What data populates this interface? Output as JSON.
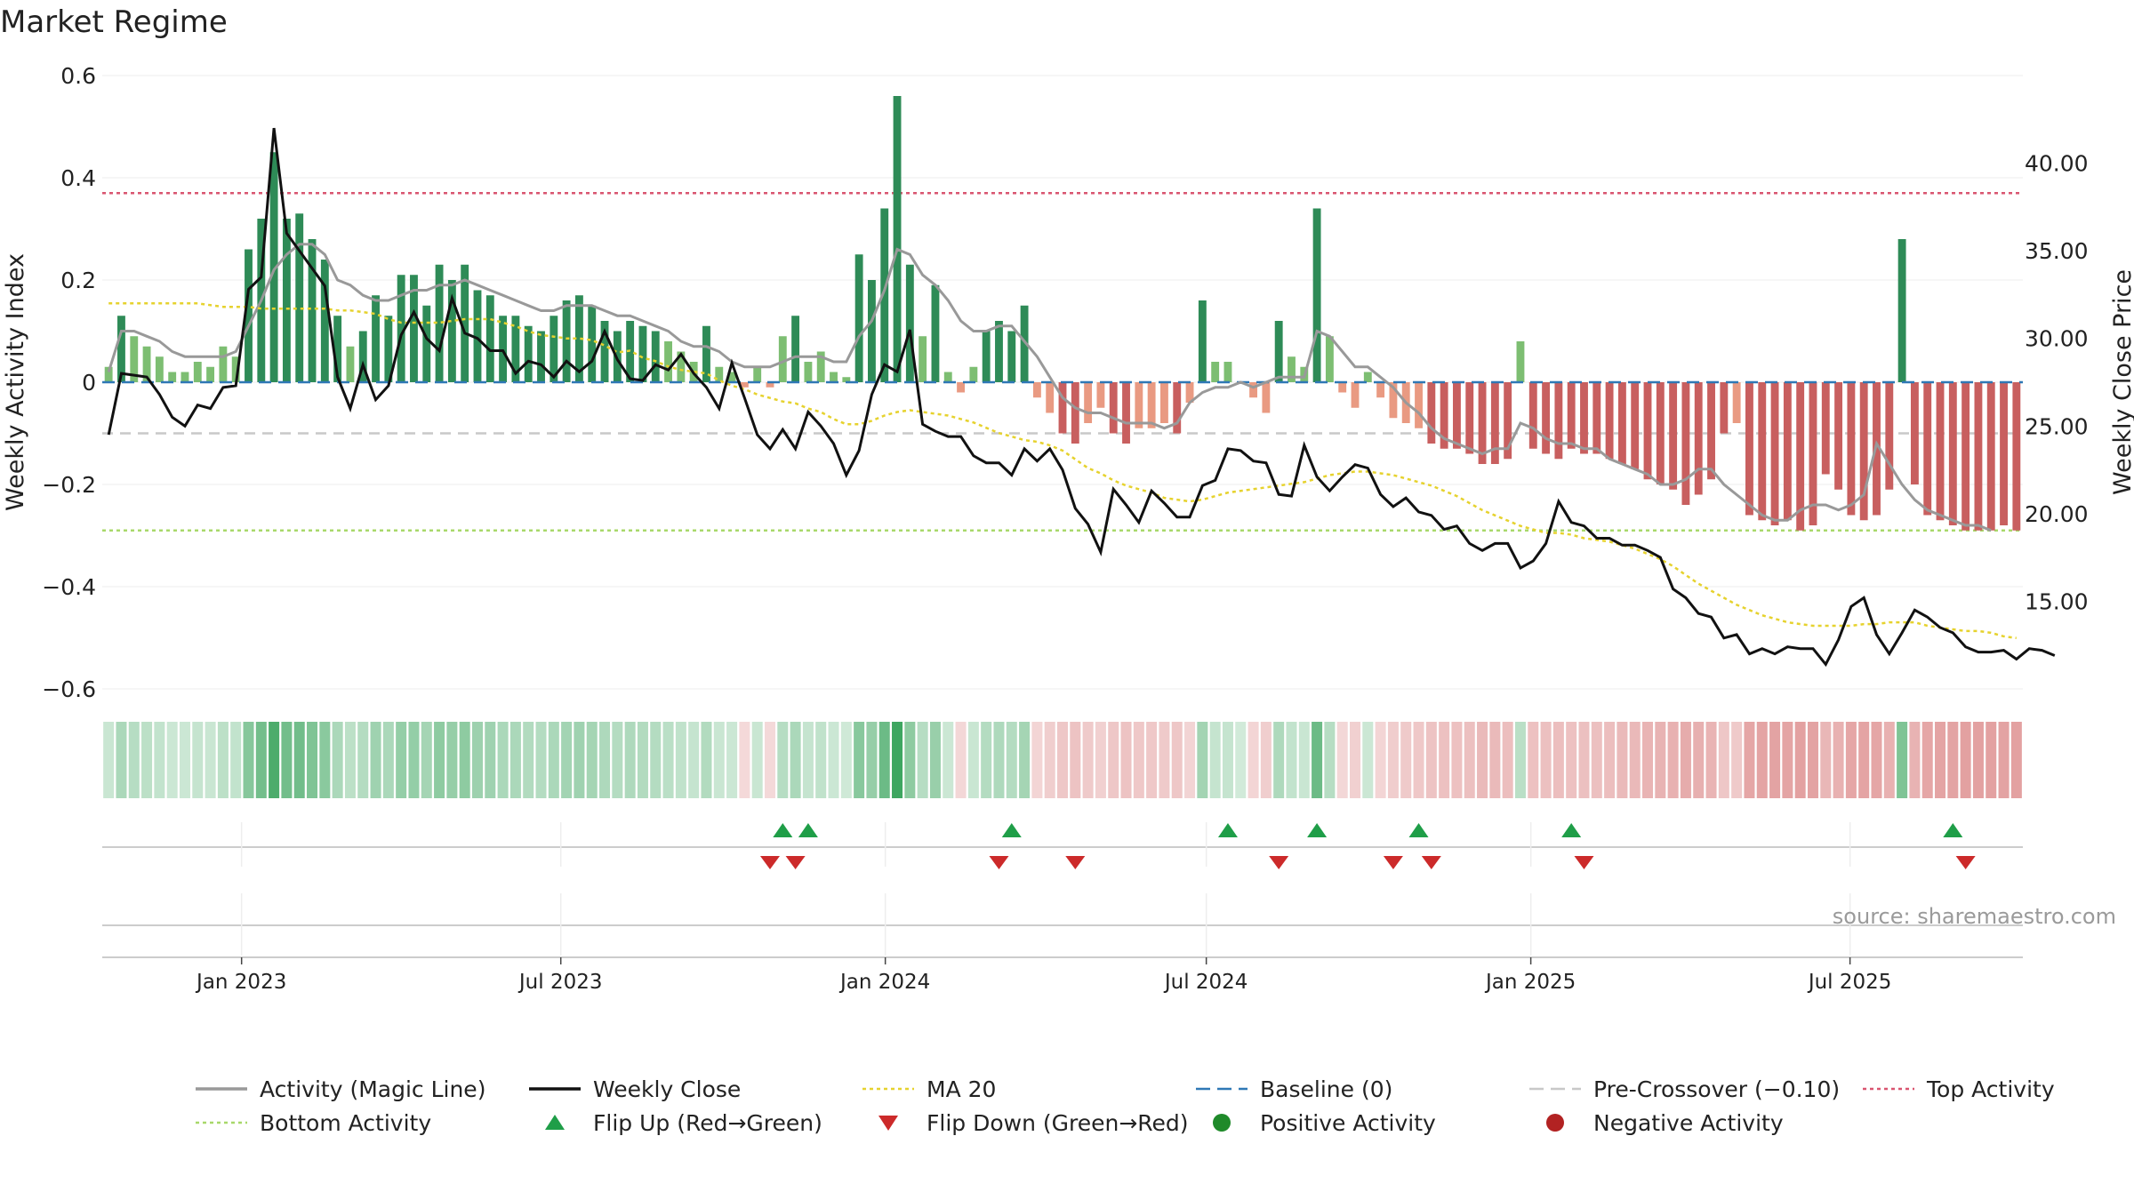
{
  "chart_data": {
    "type": "bar",
    "title": "Market Regime",
    "ylabel": "Weekly Activity Index",
    "y2label": "Weekly Close Price",
    "ylim": [
      -0.6,
      0.6
    ],
    "y2lim": [
      10,
      45
    ],
    "yticks": [
      0.6,
      0.4,
      0.2,
      0,
      -0.2,
      -0.4,
      -0.6
    ],
    "ytick_labels": [
      "0.6",
      "0.4",
      "0.2",
      "0",
      "−0.2",
      "−0.4",
      "−0.6"
    ],
    "y2ticks": [
      40,
      35,
      30,
      25,
      20,
      15
    ],
    "y2tick_labels": [
      "40.00",
      "35.00",
      "30.00",
      "25.00",
      "20.00",
      "15.00"
    ],
    "x_start": "2022-10-14",
    "x_end": "2025-10-07",
    "x_ticks": [
      {
        "label": "Jan 2023",
        "date": "2023-01-01"
      },
      {
        "label": "Jul 2023",
        "date": "2023-07-01"
      },
      {
        "label": "Jan 2024",
        "date": "2024-01-01"
      },
      {
        "label": "Jul 2024",
        "date": "2024-07-01"
      },
      {
        "label": "Jan 2025",
        "date": "2025-01-01"
      },
      {
        "label": "Jul 2025",
        "date": "2025-07-01"
      }
    ],
    "reference_lines": {
      "top_activity": 0.37,
      "bottom_activity": -0.29,
      "pre_crossover": -0.1,
      "baseline": 0
    },
    "series": [
      {
        "name": "Activity Index (bars)",
        "values": [
          0.03,
          0.13,
          0.09,
          0.07,
          0.05,
          0.02,
          0.02,
          0.04,
          0.03,
          0.07,
          0.05,
          0.26,
          0.32,
          0.45,
          0.32,
          0.33,
          0.28,
          0.24,
          0.13,
          0.07,
          0.1,
          0.17,
          0.13,
          0.21,
          0.21,
          0.15,
          0.23,
          0.2,
          0.23,
          0.18,
          0.17,
          0.13,
          0.13,
          0.11,
          0.1,
          0.13,
          0.16,
          0.17,
          0.15,
          0.12,
          0.1,
          0.12,
          0.11,
          0.1,
          0.08,
          0.06,
          0.04,
          0.11,
          0.03,
          0.02,
          -0.01,
          0.03,
          -0.01,
          0.09,
          0.13,
          0.04,
          0.06,
          0.02,
          0.01,
          0.25,
          0.2,
          0.34,
          0.56,
          0.23,
          0.09,
          0.19,
          0.02,
          -0.02,
          0.03,
          0.1,
          0.12,
          0.1,
          0.15,
          -0.03,
          -0.06,
          -0.1,
          -0.12,
          -0.08,
          -0.05,
          -0.1,
          -0.12,
          -0.09,
          -0.09,
          -0.08,
          -0.1,
          -0.04,
          0.16,
          0.04,
          0.04,
          0,
          -0.03,
          -0.06,
          0.12,
          0.05,
          0.03,
          0.34,
          0.09,
          -0.02,
          -0.05,
          0.02,
          -0.03,
          -0.07,
          -0.08,
          -0.09,
          -0.12,
          -0.13,
          -0.13,
          -0.14,
          -0.16,
          -0.16,
          -0.15,
          0.08,
          -0.13,
          -0.14,
          -0.15,
          -0.13,
          -0.14,
          -0.14,
          -0.15,
          -0.16,
          -0.17,
          -0.19,
          -0.2,
          -0.21,
          -0.24,
          -0.22,
          -0.19,
          -0.1,
          -0.08,
          -0.26,
          -0.27,
          -0.28,
          -0.27,
          -0.29,
          -0.28,
          -0.18,
          -0.21,
          -0.26,
          -0.27,
          -0.26,
          -0.21,
          0.28,
          -0.2,
          -0.26,
          -0.27,
          -0.28,
          -0.29,
          -0.29,
          -0.29,
          -0.28,
          -0.29
        ]
      },
      {
        "name": "Activity (Magic Line)",
        "values": [
          0.02,
          0.1,
          0.1,
          0.09,
          0.08,
          0.06,
          0.05,
          0.05,
          0.05,
          0.05,
          0.06,
          0.11,
          0.16,
          0.22,
          0.25,
          0.27,
          0.27,
          0.25,
          0.2,
          0.19,
          0.17,
          0.16,
          0.16,
          0.17,
          0.18,
          0.18,
          0.19,
          0.19,
          0.2,
          0.19,
          0.18,
          0.17,
          0.16,
          0.15,
          0.14,
          0.14,
          0.15,
          0.15,
          0.15,
          0.14,
          0.13,
          0.13,
          0.12,
          0.11,
          0.1,
          0.08,
          0.07,
          0.07,
          0.06,
          0.04,
          0.03,
          0.03,
          0.03,
          0.04,
          0.05,
          0.05,
          0.05,
          0.04,
          0.04,
          0.09,
          0.12,
          0.18,
          0.26,
          0.25,
          0.21,
          0.19,
          0.16,
          0.12,
          0.1,
          0.1,
          0.11,
          0.11,
          0.08,
          0.05,
          0.01,
          -0.03,
          -0.05,
          -0.06,
          -0.06,
          -0.07,
          -0.08,
          -0.08,
          -0.08,
          -0.09,
          -0.08,
          -0.04,
          -0.02,
          -0.01,
          -0.01,
          0,
          -0.01,
          0,
          0.01,
          0.01,
          0.01,
          0.1,
          0.09,
          0.06,
          0.03,
          0.03,
          0.01,
          -0.01,
          -0.04,
          -0.06,
          -0.09,
          -0.11,
          -0.12,
          -0.13,
          -0.14,
          -0.13,
          -0.13,
          -0.08,
          -0.09,
          -0.11,
          -0.12,
          -0.12,
          -0.13,
          -0.13,
          -0.15,
          -0.16,
          -0.17,
          -0.18,
          -0.2,
          -0.2,
          -0.19,
          -0.17,
          -0.17,
          -0.2,
          -0.22,
          -0.24,
          -0.26,
          -0.27,
          -0.27,
          -0.25,
          -0.24,
          -0.24,
          -0.25,
          -0.24,
          -0.22,
          -0.12,
          -0.16,
          -0.2,
          -0.23,
          -0.25,
          -0.26,
          -0.27,
          -0.28,
          -0.28,
          -0.29
        ]
      },
      {
        "name": "Weekly Close",
        "values": [
          24.5,
          28.0,
          27.9,
          27.8,
          26.8,
          25.5,
          25.0,
          26.2,
          26.0,
          27.2,
          27.3,
          32.8,
          33.5,
          42.0,
          36.0,
          35.0,
          34.0,
          33.0,
          27.8,
          26.0,
          28.5,
          26.5,
          27.3,
          30.2,
          31.5,
          30.0,
          29.3,
          32.3,
          30.3,
          30.0,
          29.3,
          29.3,
          28.0,
          28.7,
          28.5,
          27.8,
          28.7,
          28.1,
          28.7,
          30.4,
          28.8,
          27.7,
          27.6,
          28.5,
          28.2,
          29.1,
          28.0,
          27.2,
          26.0,
          28.6,
          26.6,
          24.5,
          23.7,
          24.8,
          23.7,
          25.8,
          25.0,
          24.0,
          22.2,
          23.6,
          26.8,
          28.5,
          28.1,
          30.5,
          25.1,
          24.7,
          24.4,
          24.4,
          23.3,
          22.9,
          22.9,
          22.2,
          23.7,
          23.0,
          23.7,
          22.5,
          20.3,
          19.4,
          17.8,
          21.4,
          20.5,
          19.5,
          21.3,
          20.6,
          19.8,
          19.8,
          21.6,
          21.9,
          23.7,
          23.6,
          23.0,
          22.9,
          21.1,
          21.0,
          23.9,
          22.1,
          21.3,
          22.1,
          22.8,
          22.6,
          21.1,
          20.4,
          20.9,
          20.1,
          19.9,
          19.1,
          19.3,
          18.3,
          17.9,
          18.3,
          18.3,
          16.9,
          17.3,
          18.3,
          20.7,
          19.5,
          19.3,
          18.6,
          18.6,
          18.2,
          18.2,
          17.9,
          17.5,
          15.7,
          15.2,
          14.3,
          14.1,
          12.9,
          13.1,
          12.0,
          12.3,
          12.0,
          12.4,
          12.3,
          12.3,
          11.4,
          12.8,
          14.7,
          15.2,
          13.1,
          12.0,
          13.2,
          14.5,
          14.1,
          13.5,
          13.2,
          12.4,
          12.1,
          12.1,
          12.2,
          11.7,
          12.3,
          12.2,
          11.9
        ]
      },
      {
        "name": "MA 20",
        "values": [
          32.0,
          32.0,
          32.0,
          32.0,
          32.0,
          32.0,
          32.0,
          32.0,
          31.9,
          31.8,
          31.8,
          31.8,
          31.7,
          31.7,
          31.7,
          31.7,
          31.7,
          31.7,
          31.6,
          31.6,
          31.5,
          31.4,
          31.1,
          30.9,
          30.9,
          30.9,
          30.9,
          31.0,
          31.1,
          31.1,
          31.1,
          30.9,
          30.7,
          30.4,
          30.2,
          30.1,
          30.0,
          30.0,
          29.9,
          29.6,
          29.2,
          29.3,
          28.9,
          28.7,
          28.4,
          28.2,
          28.1,
          28.0,
          27.6,
          27.3,
          27.1,
          26.8,
          26.6,
          26.4,
          26.3,
          26.0,
          25.8,
          25.4,
          25.1,
          25.1,
          25.3,
          25.6,
          25.8,
          25.9,
          25.8,
          25.7,
          25.6,
          25.4,
          25.2,
          24.9,
          24.6,
          24.4,
          24.2,
          24.1,
          23.9,
          23.6,
          23.1,
          22.6,
          22.3,
          21.9,
          21.6,
          21.4,
          21.2,
          20.9,
          20.8,
          20.7,
          20.8,
          21.0,
          21.2,
          21.3,
          21.4,
          21.5,
          21.6,
          21.7,
          21.8,
          22.0,
          22.2,
          22.3,
          22.4,
          22.4,
          22.3,
          22.2,
          22.0,
          21.8,
          21.6,
          21.3,
          21.0,
          20.6,
          20.2,
          19.9,
          19.6,
          19.3,
          19.1,
          18.9,
          18.9,
          18.8,
          18.6,
          18.5,
          18.4,
          18.2,
          18.0,
          17.7,
          17.4,
          17.0,
          16.5,
          16.0,
          15.6,
          15.2,
          14.8,
          14.5,
          14.2,
          14.0,
          13.8,
          13.7,
          13.6,
          13.6,
          13.6,
          13.6,
          13.7,
          13.7,
          13.8,
          13.8,
          13.8,
          13.6,
          13.5,
          13.4,
          13.3,
          13.3,
          13.2,
          13.0,
          12.9
        ]
      }
    ],
    "flip_up_indices": [
      53,
      55,
      71,
      88,
      95,
      103,
      115,
      145
    ],
    "flip_down_indices": [
      52,
      54,
      70,
      76,
      92,
      101,
      104,
      116,
      146
    ],
    "legend": [
      {
        "label": "Activity (Magic Line)",
        "kind": "line",
        "color": "#999999"
      },
      {
        "label": "Weekly Close",
        "kind": "line",
        "color": "#111111"
      },
      {
        "label": "MA 20",
        "kind": "dotted",
        "color": "#e6d22e"
      },
      {
        "label": "Baseline (0)",
        "kind": "dashed",
        "color": "#2f78b5"
      },
      {
        "label": "Pre-Crossover (−0.10)",
        "kind": "dashed",
        "color": "#c8c8c8"
      },
      {
        "label": "Top Activity",
        "kind": "dotted",
        "color": "#d95570"
      },
      {
        "label": "Bottom Activity",
        "kind": "dotted",
        "color": "#a8d86a"
      },
      {
        "label": "Flip Up (Red→Green)",
        "kind": "tri-up",
        "color": "#1f9e48"
      },
      {
        "label": "Flip Down (Green→Red)",
        "kind": "tri-down",
        "color": "#cc2a2a"
      },
      {
        "label": "Positive Activity",
        "kind": "dot",
        "color": "#1f8a2a"
      },
      {
        "label": "Negative Activity",
        "kind": "dot",
        "color": "#b22222"
      }
    ],
    "annotation": "source: sharemaestro.com"
  },
  "colors": {
    "pos_dark": "#2e8b57",
    "pos_light": "#7dbe72",
    "neg_dark": "#c85f5f",
    "neg_light": "#e99a82",
    "close": "#111111",
    "magic": "#999999",
    "ma20": "#e6d22e",
    "baseline": "#2f78b5",
    "pre_cross": "#c8c8c8",
    "top": "#d95570",
    "bottom": "#a8d86a",
    "flip_up": "#1f9e48",
    "flip_down": "#cc2a2a"
  }
}
